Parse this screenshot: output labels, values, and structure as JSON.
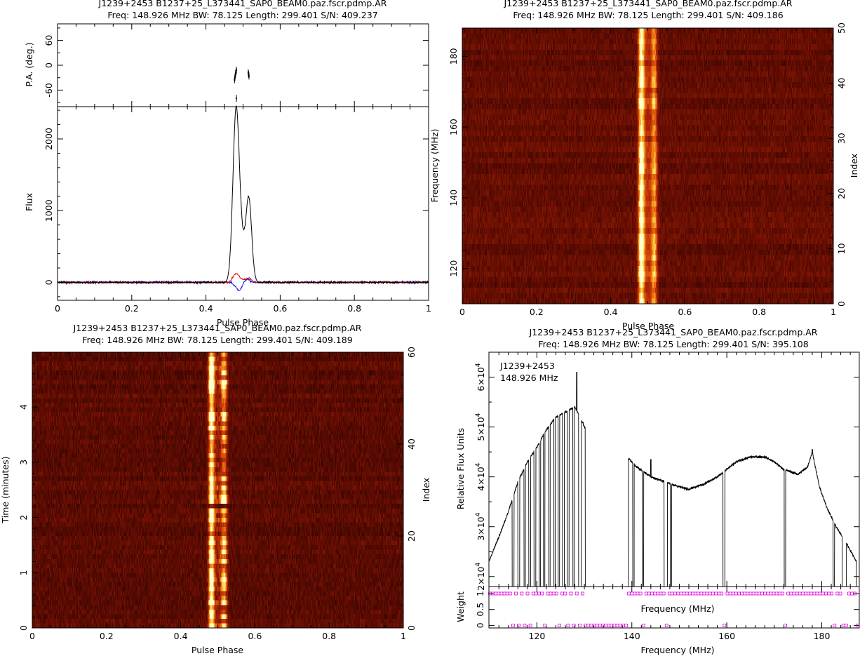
{
  "chart_data": [
    {
      "type": "line",
      "panel": "profile",
      "title": "J1239+2453 B1237+25_L373441_SAP0_BEAM0.paz.fscr.pdmp.AR",
      "subtitle": "Freq: 148.926 MHz BW: 78.125 Length: 299.401 S/N: 409.237",
      "xlabel": "Pulse Phase",
      "ylabel": "Flux",
      "pa_ylabel": "P.A. (deg.)",
      "xlim": [
        0,
        1
      ],
      "ylim": [
        -250,
        2450
      ],
      "pa_ylim": [
        -100,
        100
      ],
      "x_ticks": [
        "0",
        "0.2",
        "0.4",
        "0.6",
        "0.8",
        "1"
      ],
      "y_ticks": [
        "0",
        "1000",
        "2000"
      ],
      "pa_ticks": [
        "60",
        "0",
        "-60"
      ],
      "components": [
        {
          "center": 0.481,
          "width": 0.0085,
          "amp": 2250
        },
        {
          "center": 0.516,
          "width": 0.0075,
          "amp": 1050
        },
        {
          "center": 0.497,
          "width": 0.012,
          "amp": 480
        }
      ],
      "pa_points": [
        {
          "x": 0.477,
          "y": -35
        },
        {
          "x": 0.478,
          "y": -30
        },
        {
          "x": 0.479,
          "y": -24
        },
        {
          "x": 0.48,
          "y": -20
        },
        {
          "x": 0.481,
          "y": -15
        },
        {
          "x": 0.482,
          "y": -12
        },
        {
          "x": 0.482,
          "y": -80
        },
        {
          "x": 0.514,
          "y": -18
        },
        {
          "x": 0.515,
          "y": -22
        },
        {
          "x": 0.516,
          "y": -26
        }
      ],
      "series_colors": [
        "#000000",
        "#e01010",
        "#1010e0"
      ]
    },
    {
      "type": "heatmap",
      "panel": "phase-frequency",
      "title": "J1239+2453 B1237+25_L373441_SAP0_BEAM0.paz.fscr.pdmp.AR",
      "subtitle": "Freq: 148.926 MHz BW: 78.125 Length: 299.401 S/N: 409.186",
      "xlabel": "Pulse Phase",
      "ylabel": "Frequency (MHz)",
      "right_label": "Index",
      "xlim": [
        0,
        1
      ],
      "ylim": [
        110,
        188
      ],
      "x_ticks": [
        "0",
        "0.2",
        "0.4",
        "0.6",
        "0.8",
        "1"
      ],
      "y_ticks": [
        "120",
        "140",
        "160",
        "180"
      ],
      "right_ticks": [
        "0",
        "10",
        "20",
        "30",
        "40",
        "50"
      ],
      "index_range": [
        0,
        50
      ],
      "colormap": [
        "#000000",
        "#5a0a02",
        "#b42805",
        "#f07010",
        "#ffd040",
        "#ffffd0"
      ]
    },
    {
      "type": "heatmap",
      "panel": "phase-time",
      "title": "J1239+2453 B1237+25_L373441_SAP0_BEAM0.paz.fscr.pdmp.AR",
      "subtitle": "Freq: 148.926 MHz BW: 78.125 Length: 299.401 S/N: 409.189",
      "xlabel": "Pulse Phase",
      "ylabel": "Time (minutes)",
      "right_label": "Index",
      "xlim": [
        0,
        1
      ],
      "ylim": [
        0,
        4.99
      ],
      "x_ticks": [
        "0",
        "0.2",
        "0.4",
        "0.6",
        "0.8",
        "1"
      ],
      "y_ticks": [
        "0",
        "1",
        "2",
        "3",
        "4"
      ],
      "right_ticks": [
        "0",
        "20",
        "40",
        "60"
      ],
      "index_range": [
        0,
        60
      ]
    },
    {
      "type": "line",
      "panel": "bandpass",
      "title": "J1239+2453 B1237+25_L373441_SAP0_BEAM0.paz.fscr.pdmp.AR",
      "subtitle": "Freq: 148.926 MHz BW: 78.125 Length: 299.401 S/N: 395.108",
      "annotation_line1": "J1239+2453",
      "annotation_line2": "148.926 MHz",
      "xlabel": "Frequency (MHz)",
      "xlabel_upper": "Frequency (MHz)",
      "ylabel": "Relative Flux Units",
      "weight_label": "Weight",
      "xlim": [
        109.9,
        187.9
      ],
      "ylim": [
        18000,
        65000
      ],
      "x_ticks": [
        "120",
        "140",
        "160",
        "180"
      ],
      "y_ticks": [
        {
          "mant": "2×10",
          "exp": "4",
          "value": 20000
        },
        {
          "mant": "3×10",
          "exp": "4",
          "value": 30000
        },
        {
          "mant": "4×10",
          "exp": "4",
          "value": 40000
        },
        {
          "mant": "5×10",
          "exp": "4",
          "value": 50000
        },
        {
          "mant": "6×10",
          "exp": "4",
          "value": 60000
        }
      ],
      "weight_ticks": [
        "0",
        "0.5",
        "1"
      ],
      "envelope": [
        [
          109.9,
          23000
        ],
        [
          112,
          28000
        ],
        [
          114,
          33000
        ],
        [
          116,
          39000
        ],
        [
          118,
          43000
        ],
        [
          120,
          46000
        ],
        [
          122,
          49500
        ],
        [
          124,
          52000
        ],
        [
          126,
          53000
        ],
        [
          128,
          54000
        ],
        [
          130,
          50000
        ],
        [
          139.5,
          43500
        ],
        [
          141,
          42000
        ],
        [
          144,
          40000
        ],
        [
          147,
          39000
        ],
        [
          150,
          38000
        ],
        [
          152,
          37500
        ],
        [
          155,
          38500
        ],
        [
          158,
          40000
        ],
        [
          160,
          41500
        ],
        [
          162,
          43000
        ],
        [
          165,
          44000
        ],
        [
          168,
          44000
        ],
        [
          170,
          43000
        ],
        [
          172,
          41500
        ],
        [
          175,
          40500
        ],
        [
          177,
          42000
        ],
        [
          178,
          45000
        ],
        [
          179.5,
          38000
        ],
        [
          181,
          34000
        ],
        [
          183,
          30000
        ],
        [
          185,
          27000
        ],
        [
          187.9,
          22000
        ]
      ],
      "masked_regions": [
        [
          114.8,
          115.2
        ],
        [
          116.0,
          116.4
        ],
        [
          117.3,
          117.6
        ],
        [
          118.3,
          118.7
        ],
        [
          119.4,
          119.8
        ],
        [
          120.5,
          120.8
        ],
        [
          121.4,
          121.7
        ],
        [
          122.5,
          122.8
        ],
        [
          123.6,
          123.9
        ],
        [
          124.5,
          124.8
        ],
        [
          125.4,
          125.8
        ],
        [
          126.4,
          126.8
        ],
        [
          127.6,
          127.9
        ],
        [
          128.8,
          129.4
        ],
        [
          130.2,
          139.3
        ],
        [
          140.2,
          140.5
        ],
        [
          142.2,
          142.5
        ],
        [
          146.8,
          147.5
        ],
        [
          148.1,
          148.4
        ],
        [
          159.2,
          159.6
        ],
        [
          172.1,
          172.4
        ],
        [
          182.4,
          182.7
        ],
        [
          184.3,
          185.2
        ],
        [
          187.3,
          187.9
        ]
      ],
      "spikes": [
        [
          128.4,
          61000
        ],
        [
          129.7,
          51000
        ],
        [
          144.0,
          43500
        ],
        [
          178.0,
          45500
        ]
      ],
      "weight_color": "#e000e0"
    }
  ]
}
